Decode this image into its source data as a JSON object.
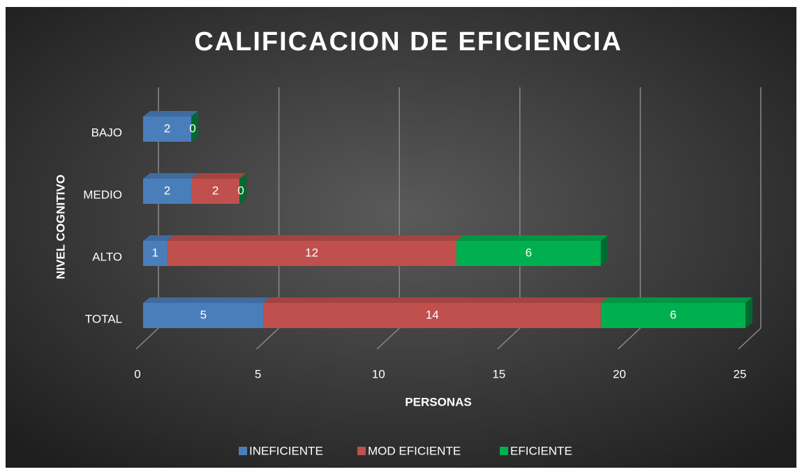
{
  "chart_data": {
    "type": "stacked_barh",
    "title": "CALIFICACION DE EFICIENCIA",
    "xlabel": "PERSONAS",
    "ylabel": "NIVEL COGNITIVO",
    "categories": [
      "BAJO",
      "MEDIO",
      "ALTO",
      "TOTAL"
    ],
    "series": [
      {
        "name": "INEFICIENTE",
        "color": "#4a7ebb",
        "values": [
          2,
          2,
          1,
          5
        ]
      },
      {
        "name": "MOD EFICIENTE",
        "color": "#c0504d",
        "values": [
          null,
          2,
          12,
          14
        ]
      },
      {
        "name": "EFICIENTE",
        "color": "#00b050",
        "values": [
          0,
          0,
          6,
          6
        ]
      }
    ],
    "xlim": [
      0,
      25
    ],
    "xticks": [
      0,
      5,
      10,
      15,
      20,
      25
    ],
    "grid": true,
    "legend": "bottom"
  }
}
